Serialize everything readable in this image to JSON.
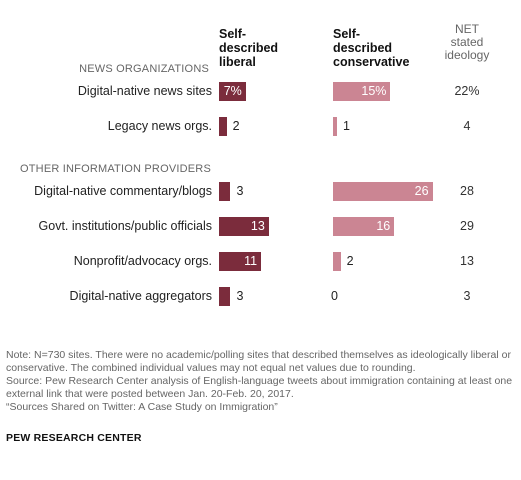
{
  "chart_data": {
    "type": "bar",
    "columns": {
      "liberal": "Self-described liberal",
      "conservative": "Self-described conservative",
      "net": "NET stated ideology"
    },
    "groups": [
      {
        "label": "NEWS ORGANIZATIONS",
        "rows": [
          {
            "category": "Digital-native news sites",
            "liberal": 7,
            "liberal_label": "7%",
            "conservative": 15,
            "conservative_label": "15%",
            "net": "22%"
          },
          {
            "category": "Legacy news orgs.",
            "liberal": 2,
            "liberal_label": "2",
            "conservative": 1,
            "conservative_label": "1",
            "net": "4"
          }
        ]
      },
      {
        "label": "OTHER INFORMATION PROVIDERS",
        "rows": [
          {
            "category": "Digital-native commentary/blogs",
            "liberal": 3,
            "liberal_label": "3",
            "conservative": 26,
            "conservative_label": "26",
            "net": "28"
          },
          {
            "category": "Govt. institutions/public officials",
            "liberal": 13,
            "liberal_label": "13",
            "conservative": 16,
            "conservative_label": "16",
            "net": "29"
          },
          {
            "category": "Nonprofit/advocacy orgs.",
            "liberal": 11,
            "liberal_label": "11",
            "conservative": 2,
            "conservative_label": "2",
            "net": "13"
          },
          {
            "category": "Digital-native aggregators",
            "liberal": 3,
            "liberal_label": "3",
            "conservative": 0,
            "conservative_label": "0",
            "net": "3"
          }
        ]
      }
    ],
    "colors": {
      "liberal": "#7b2c3c",
      "conservative": "#cb8593"
    }
  },
  "headers": {
    "liberal_line1": "Self-",
    "liberal_line2": "described",
    "liberal_line3": "liberal",
    "conservative_line1": "Self-",
    "conservative_line2": "described",
    "conservative_line3": "conservative",
    "net_line1": "NET",
    "net_line2": "stated",
    "net_line3": "ideology"
  },
  "notes": {
    "note": "Note: N=730 sites. There were no academic/polling sites that described themselves as ideologically liberal or conservative. The combined individual values may not equal net values due to rounding.",
    "source": "Source: Pew Research Center analysis of English-language tweets about immigration containing at least one external link that were posted between Jan. 20-Feb. 20, 2017.",
    "report": "“Sources Shared on Twitter: A Case Study on Immigration”",
    "brand": "PEW RESEARCH CENTER"
  }
}
